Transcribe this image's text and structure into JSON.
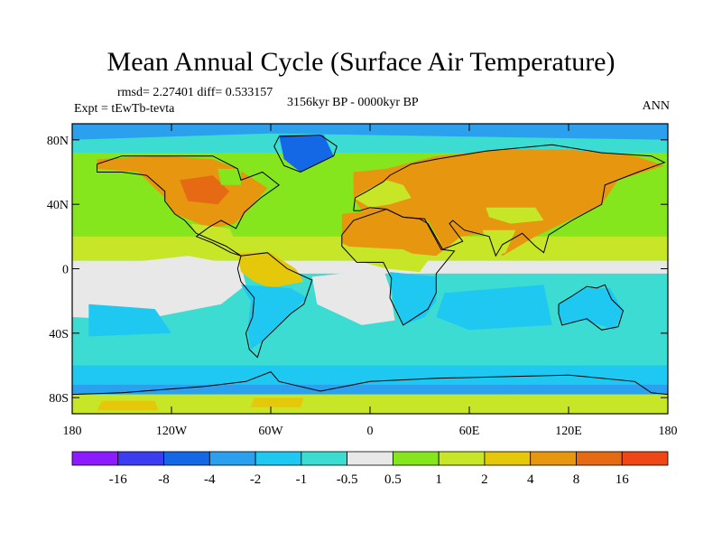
{
  "title": "Mean Annual Cycle (Surface Air Temperature)",
  "stats_line": "rmsd= 2.27401 diff= 0.533157",
  "experiment_line": "Expt = tEwTb-tevta",
  "period_line": "3156kyr BP - 0000kyr BP",
  "season_label": "ANN",
  "chart_data": {
    "type": "heatmap",
    "title": "Mean Annual Cycle (Surface Air Temperature)",
    "variable": "Surface Air Temperature difference",
    "projection": "cylindrical equidistant (global)",
    "xlim": [
      -180,
      180
    ],
    "ylim": [
      -90,
      90
    ],
    "lat_ticks": [
      {
        "value": 80,
        "label": "80N"
      },
      {
        "value": 40,
        "label": "40N"
      },
      {
        "value": 0,
        "label": "0"
      },
      {
        "value": -40,
        "label": "40S"
      },
      {
        "value": -80,
        "label": "80S"
      }
    ],
    "lon_ticks": [
      {
        "value": -180,
        "label": "180"
      },
      {
        "value": -120,
        "label": "120W"
      },
      {
        "value": -60,
        "label": "60W"
      },
      {
        "value": 0,
        "label": "0"
      },
      {
        "value": 60,
        "label": "60E"
      },
      {
        "value": 120,
        "label": "120E"
      },
      {
        "value": 180,
        "label": "180"
      }
    ],
    "contour_levels": [
      "-16",
      "-8",
      "-4",
      "-2",
      "-1",
      "-0.5",
      "0.5",
      "1",
      "2",
      "4",
      "8",
      "16"
    ],
    "colorbar_colors": [
      "#8c1cff",
      "#3c3cf0",
      "#1468e6",
      "#2aa0ee",
      "#1ec8f0",
      "#3cdcd2",
      "#e8e8e8",
      "#86e61e",
      "#c8e628",
      "#e6c80a",
      "#e6960f",
      "#e66a14",
      "#ee4614"
    ],
    "regions": [
      {
        "name": "Northern Hemisphere continents",
        "value_range": "4 to 8"
      },
      {
        "name": "Northern mid-latitude oceans",
        "value_range": "1 to 2"
      },
      {
        "name": "Southern Hemisphere oceans",
        "value_range": "-1 to -0.5"
      },
      {
        "name": "Southern Ocean / Antarctic margin",
        "value_range": "-2 to -1"
      },
      {
        "name": "Tropical eastern Pacific and Atlantic",
        "value_range": "-0.5 to 0.5"
      },
      {
        "name": "Central Antarctica",
        "value_range": "1 to 2"
      }
    ]
  }
}
